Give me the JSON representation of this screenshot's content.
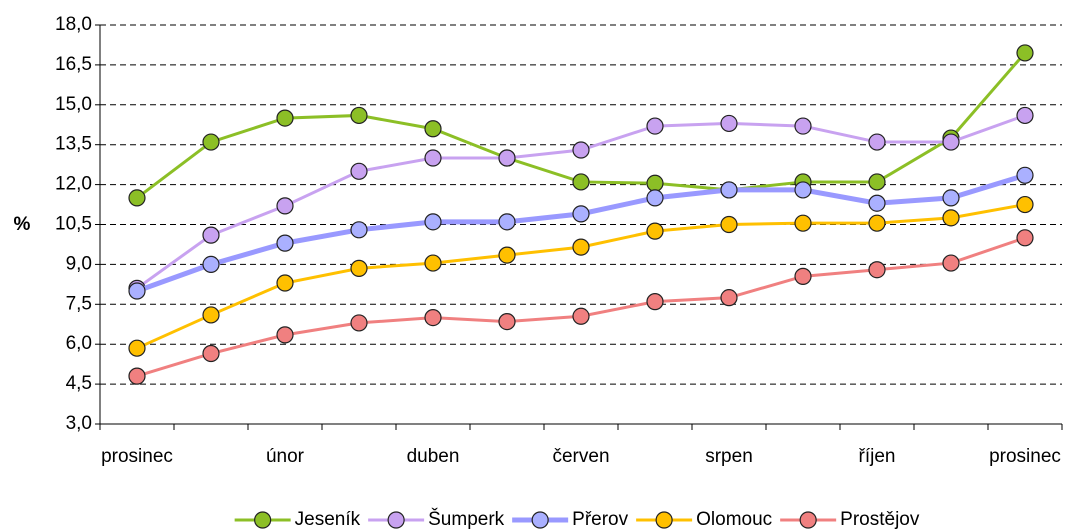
{
  "chart_data": {
    "type": "line",
    "y_label": "%",
    "categories": [
      "prosinec",
      null,
      "únor",
      null,
      "duben",
      null,
      "červen",
      null,
      "srpen",
      null,
      "říjen",
      null,
      "prosinec"
    ],
    "series": [
      {
        "name": "Jeseník",
        "color": "#8cbf26",
        "marker_color": "#8cbf26",
        "values": [
          11.5,
          13.6,
          14.5,
          14.6,
          14.1,
          13.0,
          12.1,
          12.05,
          11.8,
          12.1,
          12.1,
          13.75,
          16.95
        ]
      },
      {
        "name": "Šumperk",
        "color": "#c8a2f0",
        "marker_color": "#c8a2f0",
        "values": [
          8.1,
          10.1,
          11.2,
          12.5,
          13.0,
          13.0,
          13.3,
          14.2,
          14.3,
          14.2,
          13.6,
          13.6,
          14.6
        ]
      },
      {
        "name": "Přerov",
        "color": "#9999ff",
        "marker_color": "#aab0ff",
        "values": [
          8.0,
          9.0,
          9.8,
          10.3,
          10.6,
          10.6,
          10.9,
          11.5,
          11.8,
          11.8,
          11.3,
          11.5,
          12.35
        ]
      },
      {
        "name": "Olomouc",
        "color": "#ffc000",
        "marker_color": "#ffc000",
        "values": [
          5.85,
          7.1,
          8.3,
          8.85,
          9.05,
          9.35,
          9.65,
          10.25,
          10.5,
          10.55,
          10.55,
          10.75,
          11.25
        ]
      },
      {
        "name": "Prostějov",
        "color": "#f08080",
        "marker_color": "#f08080",
        "values": [
          4.8,
          5.65,
          6.35,
          6.8,
          7.0,
          6.85,
          7.05,
          7.6,
          7.75,
          8.55,
          8.8,
          9.05,
          10.0
        ]
      }
    ],
    "ylim": [
      3,
      18
    ],
    "yticks": [
      {
        "value": 3,
        "label": "3,0"
      },
      {
        "value": 4.5,
        "label": "4,5"
      },
      {
        "value": 6,
        "label": "6,0"
      },
      {
        "value": 7.5,
        "label": "7,5"
      },
      {
        "value": 9,
        "label": "9,0"
      },
      {
        "value": 10.5,
        "label": "10,5"
      },
      {
        "value": 12,
        "label": "12,0"
      },
      {
        "value": 13.5,
        "label": "13,5"
      },
      {
        "value": 15,
        "label": "15,0"
      },
      {
        "value": 16.5,
        "label": "16,5"
      },
      {
        "value": 18,
        "label": "18,0"
      }
    ],
    "grid": true,
    "legend": "bottom"
  }
}
